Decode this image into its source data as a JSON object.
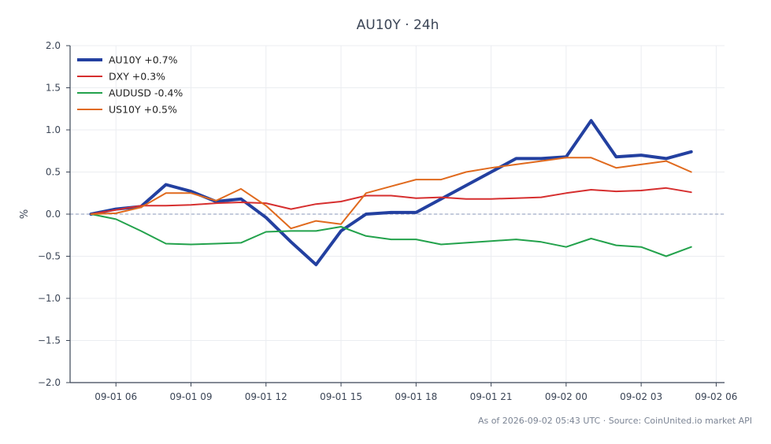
{
  "chart_data": {
    "type": "line",
    "title": "AU10Y · 24h",
    "xlabel": "",
    "ylabel": "%",
    "ylim": [
      -2.0,
      2.0
    ],
    "yticks": [
      -2.0,
      -1.5,
      -1.0,
      -0.5,
      0.0,
      0.5,
      1.0,
      1.5,
      2.0
    ],
    "ytick_labels": [
      "−2.0",
      "−1.5",
      "−1.0",
      "−0.5",
      "0.0",
      "0.5",
      "1.0",
      "1.5",
      "2.0"
    ],
    "xlim": [
      "2026-09-01 04:10",
      "2026-09-02 06:20"
    ],
    "xticks": [
      "2026-09-01 06:00",
      "2026-09-01 09:00",
      "2026-09-01 12:00",
      "2026-09-01 15:00",
      "2026-09-01 18:00",
      "2026-09-01 21:00",
      "2026-09-02 00:00",
      "2026-09-02 03:00",
      "2026-09-02 06:00"
    ],
    "xtick_labels": [
      "09-01 06",
      "09-01 09",
      "09-01 12",
      "09-01 15",
      "09-01 18",
      "09-01 21",
      "09-02 00",
      "09-02 03",
      "09-02 06"
    ],
    "x": [
      "2026-09-01 05:00",
      "2026-09-01 06:00",
      "2026-09-01 07:00",
      "2026-09-01 08:00",
      "2026-09-01 09:00",
      "2026-09-01 10:00",
      "2026-09-01 11:00",
      "2026-09-01 12:00",
      "2026-09-01 13:00",
      "2026-09-01 14:00",
      "2026-09-01 15:00",
      "2026-09-01 16:00",
      "2026-09-01 17:00",
      "2026-09-01 18:00",
      "2026-09-01 19:00",
      "2026-09-01 20:00",
      "2026-09-01 21:00",
      "2026-09-01 22:00",
      "2026-09-01 23:00",
      "2026-09-02 00:00",
      "2026-09-02 01:00",
      "2026-09-02 02:00",
      "2026-09-02 03:00",
      "2026-09-02 04:00",
      "2026-09-02 05:00"
    ],
    "series": [
      {
        "name": "AU10Y +0.7%",
        "color": "#2340a0",
        "width": 4,
        "values": [
          0.0,
          0.06,
          0.09,
          0.35,
          0.27,
          0.15,
          0.18,
          -0.04,
          -0.33,
          -0.6,
          -0.2,
          0.0,
          0.02,
          0.02,
          0.18,
          0.34,
          0.5,
          0.66,
          0.66,
          0.68,
          1.11,
          0.68,
          0.7,
          0.66,
          0.74
        ]
      },
      {
        "name": "DXY +0.3%",
        "color": "#d62f2f",
        "width": 2,
        "values": [
          0.0,
          0.05,
          0.1,
          0.1,
          0.11,
          0.13,
          0.14,
          0.13,
          0.06,
          0.12,
          0.15,
          0.22,
          0.22,
          0.19,
          0.2,
          0.18,
          0.18,
          0.19,
          0.2,
          0.25,
          0.29,
          0.27,
          0.28,
          0.31,
          0.26
        ]
      },
      {
        "name": "AUDUSD -0.4%",
        "color": "#23a24c",
        "width": 2,
        "values": [
          0.0,
          -0.06,
          -0.2,
          -0.35,
          -0.36,
          -0.35,
          -0.34,
          -0.21,
          -0.2,
          -0.2,
          -0.15,
          -0.26,
          -0.3,
          -0.3,
          -0.36,
          -0.34,
          -0.32,
          -0.3,
          -0.33,
          -0.39,
          -0.29,
          -0.37,
          -0.39,
          -0.5,
          -0.39
        ]
      },
      {
        "name": "US10Y +0.5%",
        "color": "#e06a1e",
        "width": 2,
        "values": [
          0.0,
          0.01,
          0.08,
          0.25,
          0.25,
          0.16,
          0.3,
          0.1,
          -0.17,
          -0.08,
          -0.12,
          0.25,
          0.33,
          0.41,
          0.41,
          0.5,
          0.55,
          0.59,
          0.63,
          0.67,
          0.67,
          0.55,
          0.59,
          0.63,
          0.5
        ]
      }
    ],
    "reference_line": {
      "y": 0.0,
      "style": "dashed",
      "color": "#8a97b8"
    },
    "grid": true,
    "legend": "top-left",
    "footer": "As of 2026-09-02 05:43 UTC · Source: CoinUnited.io market API"
  }
}
